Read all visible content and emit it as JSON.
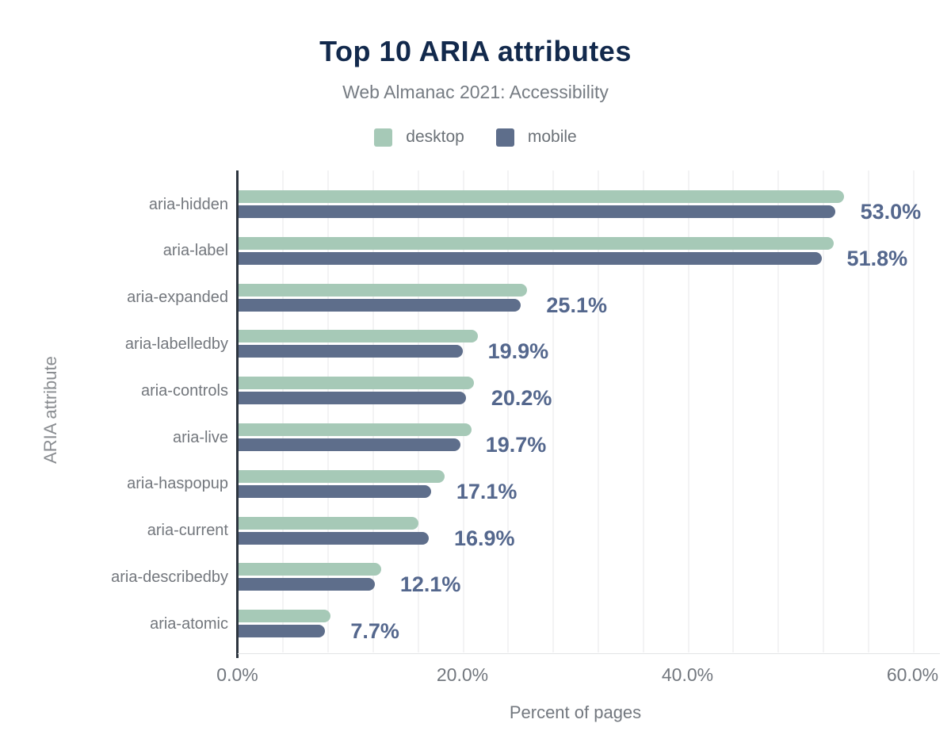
{
  "header": {
    "title": "Top 10 ARIA attributes",
    "subtitle": "Web Almanac 2021: Accessibility"
  },
  "legend": {
    "items": [
      {
        "label": "desktop",
        "color": "#a6c9b7"
      },
      {
        "label": "mobile",
        "color": "#5e6e8b"
      }
    ]
  },
  "chart_data": {
    "type": "bar",
    "orientation": "horizontal",
    "title": "Top 10 ARIA attributes",
    "subtitle": "Web Almanac 2021: Accessibility",
    "categories": [
      "aria-hidden",
      "aria-label",
      "aria-expanded",
      "aria-labelledby",
      "aria-controls",
      "aria-live",
      "aria-haspopup",
      "aria-current",
      "aria-describedby",
      "aria-atomic"
    ],
    "series": [
      {
        "name": "desktop",
        "color": "#a6c9b7",
        "values": [
          53.8,
          52.9,
          25.6,
          21.3,
          20.9,
          20.7,
          18.3,
          16.0,
          12.7,
          8.2
        ]
      },
      {
        "name": "mobile",
        "color": "#5e6e8b",
        "values": [
          53.0,
          51.8,
          25.1,
          19.9,
          20.2,
          19.7,
          17.1,
          16.9,
          12.1,
          7.7
        ]
      }
    ],
    "value_labels": [
      "53.0%",
      "51.8%",
      "25.1%",
      "19.9%",
      "20.2%",
      "19.7%",
      "17.1%",
      "16.9%",
      "12.1%",
      "7.7%"
    ],
    "value_labels_series": "mobile",
    "xlabel": "Percent of pages",
    "ylabel": "ARIA attribute",
    "xlim": [
      0,
      62.5
    ],
    "x_ticks": [
      {
        "value": 0,
        "label": "0.0%"
      },
      {
        "value": 20,
        "label": "20.0%"
      },
      {
        "value": 40,
        "label": "40.0%"
      },
      {
        "value": 60,
        "label": "60.0%"
      }
    ],
    "grid": {
      "vertical": true,
      "minor_interval_percent": 4,
      "legend_position": "top"
    }
  },
  "colors": {
    "background": "#ffffff",
    "title_text": "#12294c",
    "subtitle_text": "#767c83",
    "category_text": "#73777d",
    "value_text": "#54678d",
    "tick_text": "#72777e",
    "axis_line_dark": "#2d353f",
    "axis_line_light": "#e2e4e6",
    "gridline": "#f3f3f4",
    "desktop_bar": "#a6c9b7",
    "mobile_bar": "#5e6e8b"
  }
}
